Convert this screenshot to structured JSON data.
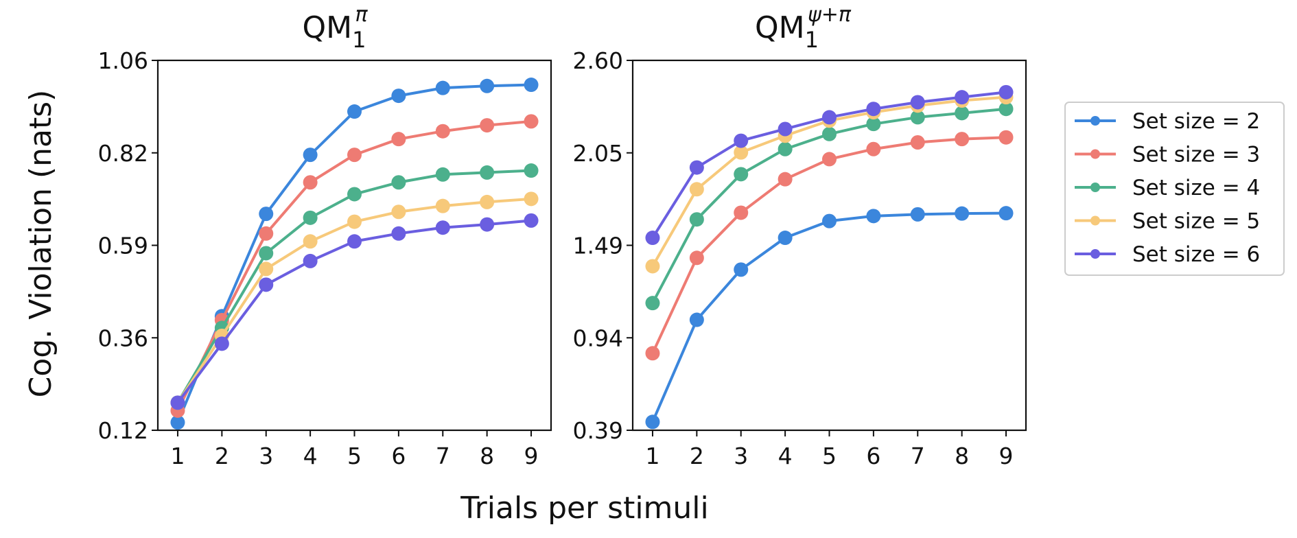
{
  "chart_data": [
    {
      "type": "line",
      "title": {
        "main": "QM",
        "sub": "1",
        "sup": "π"
      },
      "xlabel": "Trials per stimuli",
      "ylabel": "Cog. Violation (nats)",
      "x": [
        1,
        2,
        3,
        4,
        5,
        6,
        7,
        8,
        9
      ],
      "xticks": [
        "1",
        "2",
        "3",
        "4",
        "5",
        "6",
        "7",
        "8",
        "9"
      ],
      "ylim": [
        0.12,
        1.06
      ],
      "yticks": [
        "0.12",
        "0.36",
        "0.59",
        "0.82",
        "1.06"
      ],
      "grid": false,
      "series": [
        {
          "name": "Set size = 2",
          "color": "#3b86dc",
          "values": [
            0.14,
            0.41,
            0.67,
            0.82,
            0.93,
            0.97,
            0.99,
            0.995,
            0.998
          ]
        },
        {
          "name": "Set size = 3",
          "color": "#ee7b73",
          "values": [
            0.17,
            0.4,
            0.62,
            0.75,
            0.82,
            0.86,
            0.88,
            0.895,
            0.905
          ]
        },
        {
          "name": "Set size = 4",
          "color": "#4cb08c",
          "values": [
            0.19,
            0.38,
            0.57,
            0.66,
            0.72,
            0.75,
            0.77,
            0.775,
            0.78
          ]
        },
        {
          "name": "Set size = 5",
          "color": "#f7c97a",
          "values": [
            0.19,
            0.36,
            0.53,
            0.6,
            0.65,
            0.675,
            0.69,
            0.7,
            0.708
          ]
        },
        {
          "name": "Set size = 6",
          "color": "#6a5ee0",
          "values": [
            0.19,
            0.34,
            0.49,
            0.55,
            0.6,
            0.62,
            0.635,
            0.643,
            0.653
          ]
        }
      ]
    },
    {
      "type": "line",
      "title": {
        "main": "QM",
        "sub": "1",
        "sup": "ψ+π"
      },
      "xlabel": "Trials per stimuli",
      "ylabel": "",
      "x": [
        1,
        2,
        3,
        4,
        5,
        6,
        7,
        8,
        9
      ],
      "xticks": [
        "1",
        "2",
        "3",
        "4",
        "5",
        "6",
        "7",
        "8",
        "9"
      ],
      "ylim": [
        0.39,
        2.6
      ],
      "yticks": [
        "0.39",
        "0.94",
        "1.49",
        "2.05",
        "2.60"
      ],
      "grid": false,
      "series": [
        {
          "name": "Set size = 2",
          "color": "#3b86dc",
          "values": [
            0.44,
            1.05,
            1.35,
            1.54,
            1.64,
            1.67,
            1.68,
            1.685,
            1.687
          ]
        },
        {
          "name": "Set size = 3",
          "color": "#ee7b73",
          "values": [
            0.85,
            1.42,
            1.69,
            1.89,
            2.01,
            2.07,
            2.11,
            2.13,
            2.14
          ]
        },
        {
          "name": "Set size = 4",
          "color": "#4cb08c",
          "values": [
            1.15,
            1.65,
            1.92,
            2.07,
            2.16,
            2.22,
            2.26,
            2.285,
            2.31
          ]
        },
        {
          "name": "Set size = 5",
          "color": "#f7c97a",
          "values": [
            1.37,
            1.83,
            2.05,
            2.15,
            2.24,
            2.29,
            2.33,
            2.36,
            2.38
          ]
        },
        {
          "name": "Set size = 6",
          "color": "#6a5ee0",
          "values": [
            1.54,
            1.96,
            2.12,
            2.19,
            2.26,
            2.31,
            2.35,
            2.38,
            2.41
          ]
        }
      ]
    }
  ],
  "legend": {
    "placement": "right",
    "entries": [
      {
        "label": "Set size = 2",
        "color": "#3b86dc"
      },
      {
        "label": "Set size = 3",
        "color": "#ee7b73"
      },
      {
        "label": "Set size = 4",
        "color": "#4cb08c"
      },
      {
        "label": "Set size = 5",
        "color": "#f7c97a"
      },
      {
        "label": "Set size = 6",
        "color": "#6a5ee0"
      }
    ]
  },
  "figure": {
    "xlabel": "Trials per stimuli",
    "ylabel": "Cog. Violation (nats)"
  }
}
